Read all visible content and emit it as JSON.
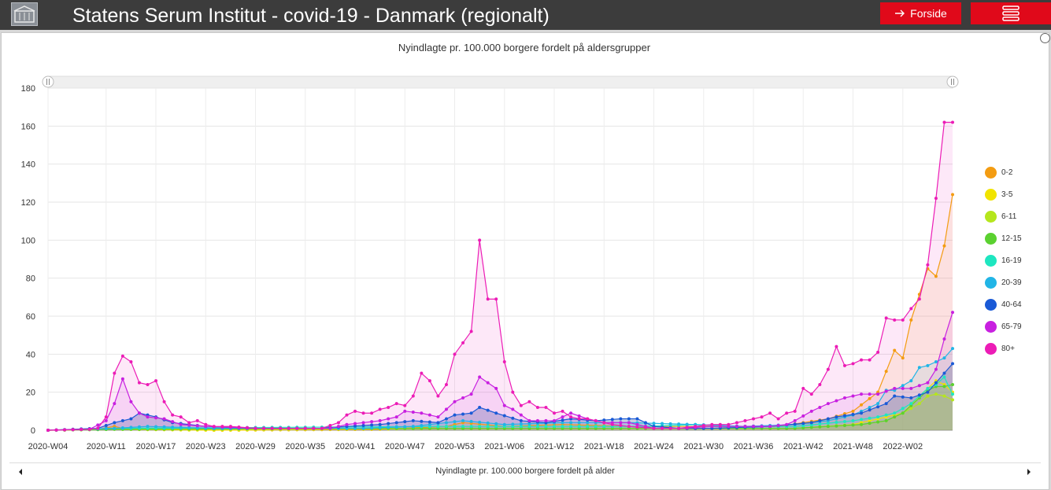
{
  "header": {
    "title": "Statens Serum Institut - covid-19 - Danmark (regionalt)",
    "forside_label": "Forside"
  },
  "icons": {
    "logo": "institute-building-icon",
    "forside": "arrow-right-icon",
    "menu": "hamburger-menu-icon"
  },
  "chart_data": {
    "type": "line",
    "title": "Nyindlagte pr. 100.000 borgere fordelt på aldersgrupper",
    "xlabel": "",
    "ylabel": "",
    "ylim": [
      0,
      180
    ],
    "yticks": [
      0,
      20,
      40,
      60,
      80,
      100,
      120,
      140,
      160,
      180
    ],
    "grid": true,
    "legend": "right",
    "scrollbar_label": "Nyindlagte pr. 100.000 borgere fordelt på alder",
    "x_tick_labels": [
      "2020-W04",
      "2020-W11",
      "2020-W17",
      "2020-W23",
      "2020-W29",
      "2020-W35",
      "2020-W41",
      "2020-W47",
      "2020-W53",
      "2021-W06",
      "2021-W12",
      "2021-W18",
      "2021-W24",
      "2021-W30",
      "2021-W36",
      "2021-W42",
      "2021-W48",
      "2022-W02"
    ],
    "x_tick_index": [
      0,
      7,
      13,
      19,
      25,
      31,
      37,
      43,
      49,
      55,
      61,
      67,
      73,
      79,
      85,
      91,
      97,
      103
    ],
    "n_weeks": 110,
    "series": [
      {
        "name": "0-2",
        "color": "#f39c12",
        "points": [
          [
            0,
            0
          ],
          [
            6,
            0.5
          ],
          [
            8,
            2
          ],
          [
            9,
            1
          ],
          [
            15,
            0.5
          ],
          [
            20,
            0
          ],
          [
            40,
            0.5
          ],
          [
            48,
            2
          ],
          [
            50,
            4
          ],
          [
            55,
            2
          ],
          [
            62,
            3
          ],
          [
            70,
            2
          ],
          [
            80,
            2
          ],
          [
            88,
            2
          ],
          [
            94,
            6
          ],
          [
            97,
            10
          ],
          [
            100,
            20
          ],
          [
            102,
            42
          ],
          [
            103,
            38
          ],
          [
            104,
            58
          ],
          [
            106,
            85
          ],
          [
            107,
            81
          ],
          [
            108,
            97
          ],
          [
            109,
            124
          ]
        ]
      },
      {
        "name": "3-5",
        "color": "#f1e400",
        "points": [
          [
            0,
            0
          ],
          [
            8,
            0.5
          ],
          [
            20,
            0
          ],
          [
            48,
            1
          ],
          [
            60,
            1
          ],
          [
            90,
            1
          ],
          [
            97,
            3
          ],
          [
            100,
            6
          ],
          [
            103,
            9
          ],
          [
            105,
            18
          ],
          [
            106,
            22
          ],
          [
            107,
            26
          ],
          [
            108,
            24
          ],
          [
            109,
            20
          ]
        ]
      },
      {
        "name": "6-11",
        "color": "#b5e61d",
        "points": [
          [
            0,
            0
          ],
          [
            8,
            0.5
          ],
          [
            48,
            1
          ],
          [
            70,
            1
          ],
          [
            90,
            1
          ],
          [
            98,
            3
          ],
          [
            101,
            5
          ],
          [
            103,
            9
          ],
          [
            105,
            14
          ],
          [
            106,
            18
          ],
          [
            107,
            19
          ],
          [
            108,
            18
          ],
          [
            109,
            16
          ]
        ]
      },
      {
        "name": "12-15",
        "color": "#5bd130",
        "points": [
          [
            0,
            0
          ],
          [
            8,
            0.5
          ],
          [
            48,
            1
          ],
          [
            70,
            1
          ],
          [
            90,
            1
          ],
          [
            98,
            3
          ],
          [
            101,
            5
          ],
          [
            103,
            9
          ],
          [
            105,
            17
          ],
          [
            106,
            21
          ],
          [
            107,
            23
          ],
          [
            108,
            23
          ],
          [
            109,
            24
          ]
        ]
      },
      {
        "name": "16-19",
        "color": "#1ee6c0",
        "points": [
          [
            0,
            0
          ],
          [
            8,
            1
          ],
          [
            48,
            2
          ],
          [
            72,
            2
          ],
          [
            78,
            3
          ],
          [
            82,
            2
          ],
          [
            90,
            2
          ],
          [
            97,
            5
          ],
          [
            100,
            7
          ],
          [
            102,
            9
          ],
          [
            104,
            14
          ],
          [
            105,
            18
          ],
          [
            106,
            22
          ],
          [
            107,
            24
          ],
          [
            108,
            28
          ],
          [
            109,
            19
          ]
        ]
      },
      {
        "name": "20-39",
        "color": "#21b5e6",
        "points": [
          [
            0,
            0
          ],
          [
            8,
            1
          ],
          [
            12,
            2
          ],
          [
            20,
            1
          ],
          [
            38,
            1
          ],
          [
            44,
            2
          ],
          [
            48,
            4
          ],
          [
            50,
            5
          ],
          [
            55,
            3
          ],
          [
            62,
            4
          ],
          [
            70,
            4
          ],
          [
            78,
            3
          ],
          [
            84,
            2
          ],
          [
            90,
            3
          ],
          [
            94,
            5
          ],
          [
            97,
            8
          ],
          [
            100,
            14
          ],
          [
            101,
            21
          ],
          [
            102,
            21
          ],
          [
            104,
            26
          ],
          [
            105,
            33
          ],
          [
            106,
            34
          ],
          [
            107,
            36
          ],
          [
            108,
            38
          ],
          [
            109,
            43
          ]
        ]
      },
      {
        "name": "40-64",
        "color": "#1a5ad6",
        "points": [
          [
            0,
            0
          ],
          [
            6,
            1
          ],
          [
            8,
            4
          ],
          [
            10,
            6
          ],
          [
            11,
            9
          ],
          [
            13,
            7
          ],
          [
            15,
            4
          ],
          [
            19,
            2
          ],
          [
            25,
            1
          ],
          [
            33,
            1
          ],
          [
            36,
            2
          ],
          [
            40,
            3
          ],
          [
            44,
            5
          ],
          [
            47,
            4
          ],
          [
            49,
            8
          ],
          [
            51,
            9
          ],
          [
            52,
            12
          ],
          [
            54,
            9
          ],
          [
            57,
            5
          ],
          [
            60,
            4
          ],
          [
            63,
            6
          ],
          [
            66,
            5
          ],
          [
            69,
            6
          ],
          [
            71,
            6
          ],
          [
            73,
            2
          ],
          [
            76,
            1
          ],
          [
            80,
            1
          ],
          [
            87,
            2
          ],
          [
            92,
            4
          ],
          [
            95,
            7
          ],
          [
            98,
            9
          ],
          [
            101,
            14
          ],
          [
            102,
            18
          ],
          [
            104,
            17
          ],
          [
            106,
            20
          ],
          [
            107,
            25
          ],
          [
            108,
            30
          ],
          [
            109,
            35
          ]
        ]
      },
      {
        "name": "65-79",
        "color": "#c820e0",
        "points": [
          [
            0,
            0
          ],
          [
            5,
            0.5
          ],
          [
            7,
            5
          ],
          [
            8,
            14
          ],
          [
            9,
            27
          ],
          [
            10,
            15
          ],
          [
            11,
            9
          ],
          [
            12,
            7
          ],
          [
            14,
            6
          ],
          [
            16,
            3
          ],
          [
            19,
            2
          ],
          [
            25,
            1
          ],
          [
            34,
            1
          ],
          [
            36,
            3
          ],
          [
            38,
            4
          ],
          [
            40,
            5
          ],
          [
            42,
            7
          ],
          [
            43,
            10
          ],
          [
            45,
            9
          ],
          [
            47,
            7
          ],
          [
            49,
            15
          ],
          [
            51,
            19
          ],
          [
            52,
            28
          ],
          [
            54,
            22
          ],
          [
            55,
            13
          ],
          [
            56,
            11
          ],
          [
            58,
            5
          ],
          [
            61,
            5
          ],
          [
            63,
            9
          ],
          [
            65,
            6
          ],
          [
            67,
            4
          ],
          [
            70,
            4
          ],
          [
            73,
            1
          ],
          [
            76,
            1
          ],
          [
            80,
            2
          ],
          [
            84,
            2
          ],
          [
            87,
            2
          ],
          [
            89,
            3
          ],
          [
            90,
            5
          ],
          [
            92,
            10
          ],
          [
            94,
            14
          ],
          [
            96,
            17
          ],
          [
            98,
            19
          ],
          [
            100,
            19
          ],
          [
            102,
            22
          ],
          [
            104,
            22
          ],
          [
            106,
            25
          ],
          [
            107,
            32
          ],
          [
            108,
            48
          ],
          [
            109,
            62
          ]
        ]
      },
      {
        "name": "80+",
        "color": "#ec1cb6",
        "points": [
          [
            0,
            0
          ],
          [
            5,
            0.5
          ],
          [
            6,
            1
          ],
          [
            7,
            7
          ],
          [
            8,
            30
          ],
          [
            9,
            39
          ],
          [
            10,
            36
          ],
          [
            11,
            25
          ],
          [
            12,
            24
          ],
          [
            13,
            26
          ],
          [
            14,
            15
          ],
          [
            15,
            8
          ],
          [
            16,
            7
          ],
          [
            17,
            4
          ],
          [
            18,
            5
          ],
          [
            19,
            3
          ],
          [
            20,
            2
          ],
          [
            22,
            2
          ],
          [
            25,
            1
          ],
          [
            30,
            1
          ],
          [
            33,
            1
          ],
          [
            35,
            4
          ],
          [
            36,
            8
          ],
          [
            37,
            10
          ],
          [
            38,
            9
          ],
          [
            39,
            9
          ],
          [
            40,
            11
          ],
          [
            41,
            12
          ],
          [
            42,
            14
          ],
          [
            43,
            13
          ],
          [
            44,
            18
          ],
          [
            45,
            30
          ],
          [
            46,
            26
          ],
          [
            47,
            18
          ],
          [
            48,
            24
          ],
          [
            49,
            40
          ],
          [
            50,
            46
          ],
          [
            51,
            52
          ],
          [
            52,
            100
          ],
          [
            53,
            69
          ],
          [
            54,
            69
          ],
          [
            55,
            36
          ],
          [
            56,
            20
          ],
          [
            57,
            13
          ],
          [
            58,
            15
          ],
          [
            59,
            12
          ],
          [
            60,
            12
          ],
          [
            61,
            9
          ],
          [
            62,
            10
          ],
          [
            63,
            7
          ],
          [
            64,
            6
          ],
          [
            65,
            6
          ],
          [
            66,
            5
          ],
          [
            67,
            4
          ],
          [
            68,
            3
          ],
          [
            70,
            2
          ],
          [
            73,
            1
          ],
          [
            76,
            1
          ],
          [
            78,
            2
          ],
          [
            80,
            3
          ],
          [
            82,
            3
          ],
          [
            84,
            5
          ],
          [
            85,
            6
          ],
          [
            86,
            7
          ],
          [
            87,
            9
          ],
          [
            88,
            6
          ],
          [
            89,
            9
          ],
          [
            90,
            10
          ],
          [
            91,
            22
          ],
          [
            92,
            19
          ],
          [
            93,
            24
          ],
          [
            94,
            32
          ],
          [
            95,
            44
          ],
          [
            96,
            34
          ],
          [
            97,
            35
          ],
          [
            98,
            37
          ],
          [
            99,
            37
          ],
          [
            100,
            41
          ],
          [
            101,
            59
          ],
          [
            102,
            58
          ],
          [
            103,
            58
          ],
          [
            104,
            64
          ],
          [
            105,
            69
          ],
          [
            106,
            87
          ],
          [
            107,
            122
          ],
          [
            108,
            162
          ],
          [
            109,
            162
          ]
        ]
      }
    ]
  }
}
